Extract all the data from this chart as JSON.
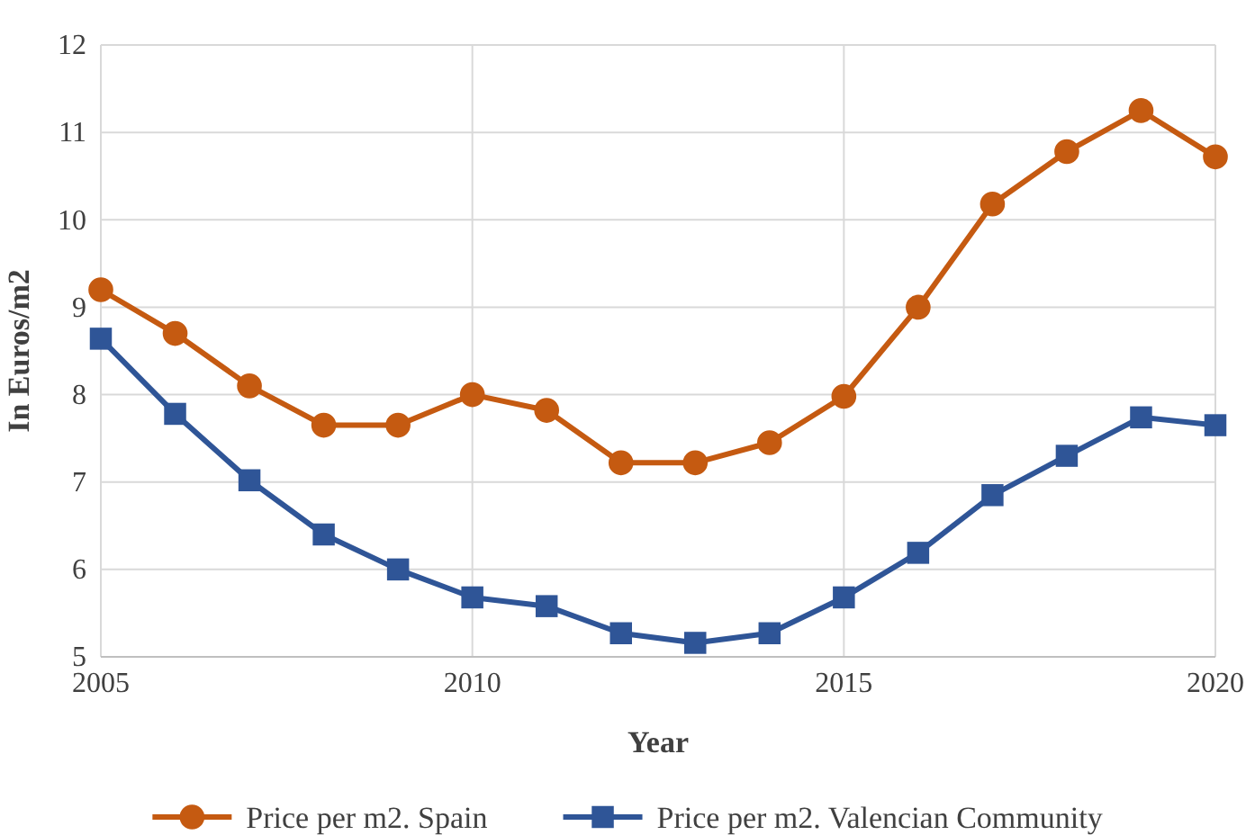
{
  "chart_data": {
    "type": "line",
    "xlabel": "Year",
    "ylabel": "In Euros/m2",
    "x": [
      2005,
      2006,
      2007,
      2008,
      2009,
      2010,
      2011,
      2012,
      2013,
      2014,
      2015,
      2016,
      2017,
      2018,
      2019,
      2020
    ],
    "series": [
      {
        "name": "Price per m2. Spain",
        "color": "#c55a11",
        "marker": "circle",
        "values": [
          9.2,
          8.7,
          8.1,
          7.65,
          7.65,
          8.0,
          7.82,
          7.22,
          7.22,
          7.45,
          7.98,
          9.0,
          10.18,
          10.78,
          11.25,
          10.72
        ]
      },
      {
        "name": "Price per m2. Valencian Community",
        "color": "#2f5597",
        "marker": "square",
        "values": [
          8.64,
          7.78,
          7.02,
          6.4,
          6.0,
          5.68,
          5.58,
          5.27,
          5.16,
          5.27,
          5.68,
          6.19,
          6.85,
          7.3,
          7.74,
          7.65
        ]
      }
    ],
    "xlim": [
      2005,
      2020
    ],
    "xticks": [
      2005,
      2010,
      2015,
      2020
    ],
    "ylim": [
      5,
      12
    ],
    "yticks": [
      5,
      6,
      7,
      8,
      9,
      10,
      11,
      12
    ],
    "grid": true,
    "legend": "bottom",
    "line_style": "solid"
  }
}
